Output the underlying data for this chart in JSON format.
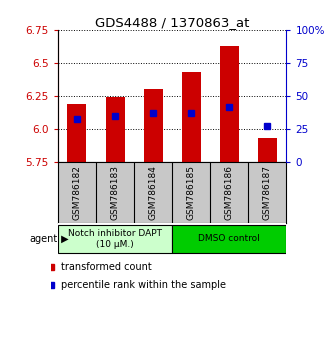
{
  "title": "GDS4488 / 1370863_at",
  "samples": [
    "GSM786182",
    "GSM786183",
    "GSM786184",
    "GSM786185",
    "GSM786186",
    "GSM786187"
  ],
  "bar_values": [
    6.19,
    6.24,
    6.3,
    6.43,
    6.63,
    5.93
  ],
  "percentile_values": [
    33,
    35,
    37,
    37,
    42,
    27
  ],
  "ylim_left": [
    5.75,
    6.75
  ],
  "ylim_right": [
    0,
    100
  ],
  "yticks_left": [
    5.75,
    6.0,
    6.25,
    6.5,
    6.75
  ],
  "yticks_right": [
    0,
    25,
    50,
    75,
    100
  ],
  "ytick_labels_right": [
    "0",
    "25",
    "50",
    "75",
    "100%"
  ],
  "bar_color": "#cc0000",
  "percentile_color": "#0000cc",
  "bar_bottom": 5.75,
  "groups": [
    {
      "label": "Notch inhibitor DAPT\n(10 μM.)",
      "samples": [
        0,
        1,
        2
      ],
      "color": "#ccffcc"
    },
    {
      "label": "DMSO control",
      "samples": [
        3,
        4,
        5
      ],
      "color": "#00cc00"
    }
  ],
  "agent_label": "agent",
  "legend_bar_label": "transformed count",
  "legend_pct_label": "percentile rank within the sample",
  "background_color": "#ffffff",
  "plot_bg_color": "#ffffff",
  "left_axis_color": "#cc0000",
  "right_axis_color": "#0000cc",
  "label_bg_color": "#c8c8c8"
}
